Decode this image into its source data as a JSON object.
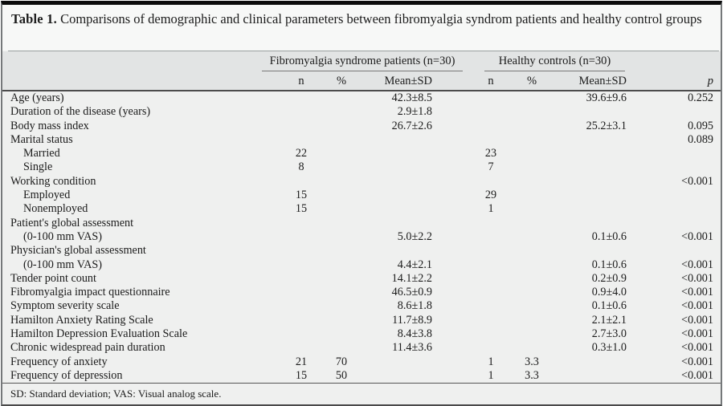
{
  "table": {
    "title_label": "Table 1.",
    "title_text": "Comparisons of demographic and clinical parameters between fibromyalgia syndrom patients and healthy control groups",
    "groups": {
      "fms": "Fibromyalgia syndrome patients (n=30)",
      "hc": "Healthy controls (n=30)"
    },
    "subheaders": {
      "n": "n",
      "pct": "%",
      "mean": "Mean±SD",
      "p": "p"
    },
    "rows": [
      [
        "Age (years)",
        0,
        "",
        "",
        "42.3±8.5",
        "",
        "",
        "39.6±9.6",
        "0.252"
      ],
      [
        "Duration of the disease (years)",
        0,
        "",
        "",
        "2.9±1.8",
        "",
        "",
        "",
        ""
      ],
      [
        "Body mass index",
        0,
        "",
        "",
        "26.7±2.6",
        "",
        "",
        "25.2±3.1",
        "0.095"
      ],
      [
        "Marital status",
        0,
        "",
        "",
        "",
        "",
        "",
        "",
        "0.089"
      ],
      [
        "Married",
        1,
        "22",
        "",
        "",
        "23",
        "",
        "",
        ""
      ],
      [
        "Single",
        1,
        "8",
        "",
        "",
        "7",
        "",
        "",
        ""
      ],
      [
        "Working condition",
        0,
        "",
        "",
        "",
        "",
        "",
        "",
        "<0.001"
      ],
      [
        "Employed",
        1,
        "15",
        "",
        "",
        "29",
        "",
        "",
        ""
      ],
      [
        "Nonemployed",
        1,
        "15",
        "",
        "",
        "1",
        "",
        "",
        ""
      ],
      [
        "Patient's global assessment",
        0,
        "",
        "",
        "",
        "",
        "",
        "",
        ""
      ],
      [
        "(0-100 mm VAS)",
        1,
        "",
        "",
        "5.0±2.2",
        "",
        "",
        "0.1±0.6",
        "<0.001"
      ],
      [
        "Physician's global assessment",
        0,
        "",
        "",
        "",
        "",
        "",
        "",
        ""
      ],
      [
        "(0-100 mm VAS)",
        1,
        "",
        "",
        "4.4±2.1",
        "",
        "",
        "0.1±0.6",
        "<0.001"
      ],
      [
        "Tender point count",
        0,
        "",
        "",
        "14.1±2.2",
        "",
        "",
        "0.2±0.9",
        "<0.001"
      ],
      [
        "Fibromyalgia impact questionnaire",
        0,
        "",
        "",
        "46.5±0.9",
        "",
        "",
        "0.9±4.0",
        "<0.001"
      ],
      [
        "Symptom severity scale",
        0,
        "",
        "",
        "8.6±1.8",
        "",
        "",
        "0.1±0.6",
        "<0.001"
      ],
      [
        "Hamilton Anxiety Rating Scale",
        0,
        "",
        "",
        "11.7±8.9",
        "",
        "",
        "2.1±2.1",
        "<0.001"
      ],
      [
        "Hamilton Depression Evaluation Scale",
        0,
        "",
        "",
        "8.4±3.8",
        "",
        "",
        "2.7±3.0",
        "<0.001"
      ],
      [
        "Chronic widespread pain duration",
        0,
        "",
        "",
        "11.4±3.6",
        "",
        "",
        "0.3±1.0",
        "<0.001"
      ],
      [
        "Frequency of anxiety",
        0,
        "21",
        "70",
        "",
        "1",
        "3.3",
        "",
        "<0.001"
      ],
      [
        "Frequency of depression",
        0,
        "15",
        "50",
        "",
        "1",
        "3.3",
        "",
        "<0.001"
      ]
    ],
    "footnote": "SD: Standard deviation; VAS: Visual analog scale."
  },
  "colors": {
    "header_band": "#e2e4e4",
    "body_bg": "#eff0ef",
    "title_bg": "#f7f8f7",
    "border_top": "#0b0b0b",
    "text": "#1b1b1b"
  }
}
